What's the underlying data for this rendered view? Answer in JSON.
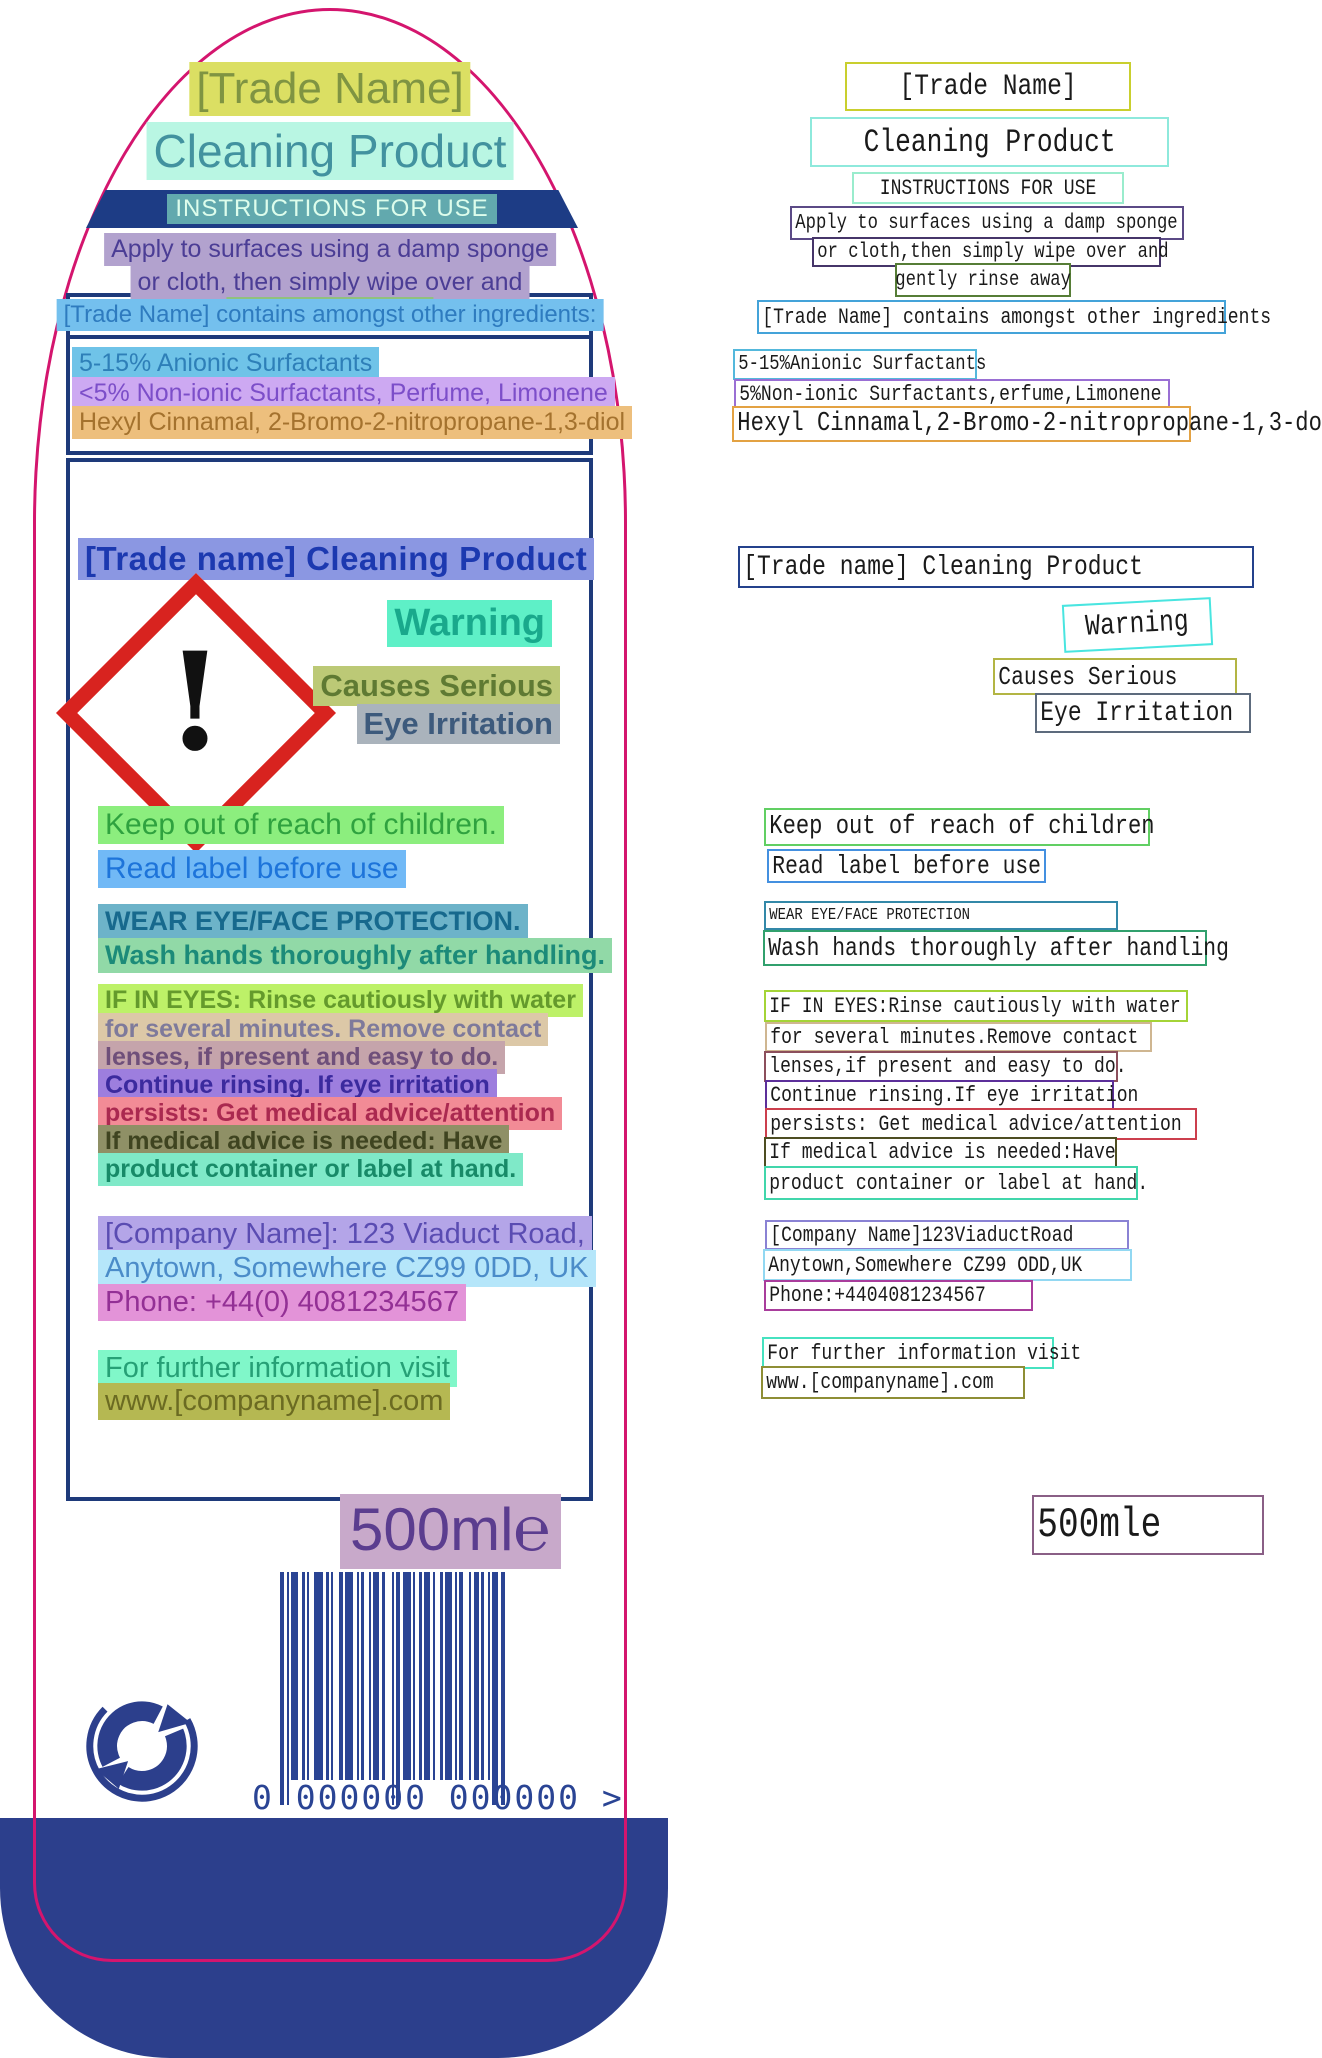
{
  "colors": {
    "outline_pink": "#d4156e",
    "navy": "#1e3a7a",
    "base_blue": "#2c3f8c",
    "ghs_red": "#d8231f"
  },
  "label": {
    "title": "[Trade Name]",
    "title_color": "#7f9442",
    "title_hl": "#dbdf63",
    "subtitle": "Cleaning Product",
    "subtitle_color": "#42929f",
    "subtitle_hl": "#b9f6e3",
    "banner": {
      "text": "INSTRUCTIONS FOR USE",
      "color": "#ddfdec",
      "hl": "#62a9ae"
    },
    "usage": [
      {
        "text": "Apply to surfaces using a damp sponge",
        "color": "#4b3d95",
        "hl": "#b2a2ce"
      },
      {
        "text": "or cloth, then simply wipe over and",
        "color": "#4b3d95",
        "hl": "#b2a2ce"
      },
      {
        "text": "gently rinse away",
        "color": "#40753c",
        "hl": "#90c17e"
      }
    ],
    "ingredients_header": {
      "text": "[Trade Name] contains amongst other ingredients:",
      "color": "#2e7bbf",
      "hl": "#74c0ee"
    },
    "ingredients": [
      {
        "text": "5-15% Anionic Surfactants",
        "color": "#2e7fb8",
        "hl": "#6fc3e8"
      },
      {
        "text": "<5% Non-ionic Surfactants, Perfume, Limonene",
        "color": "#7c4ec9",
        "hl": "#cda9f2"
      },
      {
        "text": "Hexyl Cinnamal, 2-Bromo-2-nitropropane-1,3-diol",
        "color": "#a4722e",
        "hl": "#edbf7d"
      }
    ],
    "product_line": {
      "text": "[Trade name] Cleaning Product",
      "color": "#1c39b0",
      "hl": "#8b97e2"
    },
    "ghs_exclamation": "!",
    "signal_word": {
      "text": "Warning",
      "color": "#19a98c",
      "hl": "#5ef0c7"
    },
    "hazard_lines": [
      {
        "text": "Causes Serious",
        "color": "#5f7a33",
        "hl": "#bcc976"
      },
      {
        "text": "Eye Irritation",
        "color": "#3d5a7c",
        "hl": "#aab3bc"
      }
    ],
    "statements": [
      {
        "id": "s1",
        "text": "Keep out of reach of children.",
        "color": "#2fa23f",
        "hl": "#8cee7e"
      },
      {
        "id": "s2",
        "text": "Read label before use",
        "color": "#1d74da",
        "hl": "#71b9f6"
      },
      {
        "id": "s3",
        "text": "WEAR EYE/FACE PROTECTION.",
        "color": "#17698d",
        "hl": "#6db3c9"
      },
      {
        "id": "s4",
        "text": "Wash hands thoroughly after handling.",
        "color": "#1c8b79",
        "hl": "#91d9a7"
      },
      {
        "id": "s5",
        "text": "IF IN EYES: Rinse cautiously with water",
        "color": "#649a2c",
        "hl": "#bdf168"
      },
      {
        "id": "s6",
        "text": "for several minutes. Remove contact",
        "color": "#7e7a9b",
        "hl": "#dcc8a7"
      },
      {
        "id": "s7",
        "text": "lenses, if present and easy to do.",
        "color": "#6f4f7a",
        "hl": "#c5a4ab"
      },
      {
        "id": "s8",
        "text": "Continue rinsing. If eye irritation",
        "color": "#3b2a9e",
        "hl": "#9d7ede"
      },
      {
        "id": "s9",
        "text": "persists: Get medical advice/attention",
        "color": "#aa2950",
        "hl": "#f28b96"
      },
      {
        "id": "s10",
        "text": "If medical advice is needed: Have",
        "color": "#3f4420",
        "hl": "#8f9066"
      },
      {
        "id": "s11",
        "text": "product container or label at hand.",
        "color": "#188a68",
        "hl": "#7fe9c8"
      },
      {
        "id": "c1",
        "text": "[Company Name]: 123 Viaduct Road,",
        "color": "#5a4cb2",
        "hl": "#b4a5e8"
      },
      {
        "id": "c2",
        "text": "Anytown, Somewhere CZ99 0DD, UK",
        "color": "#4b8cc9",
        "hl": "#b5e6fa"
      },
      {
        "id": "c3",
        "text": "Phone: +44(0) 4081234567",
        "color": "#933095",
        "hl": "#e393d8"
      },
      {
        "id": "f1",
        "text": "For further information visit",
        "color": "#26a076",
        "hl": "#80f7c9"
      },
      {
        "id": "f2",
        "text": "www.[companyname].com",
        "color": "#6b6b22",
        "hl": "#b5b852"
      }
    ],
    "size_text": "500ml",
    "e_mark": "℮",
    "size_color": "#5b3d8f",
    "size_hl": "#c8a9ca",
    "barcode_digits": "0 000000 000000 >"
  },
  "ocr_panel": {
    "rows": [
      {
        "id": "r1",
        "text": "[Trade Name]",
        "border": "#c9cf2e"
      },
      {
        "id": "r2",
        "text": "Cleaning Product",
        "border": "#8ee9dc"
      },
      {
        "id": "r3",
        "text": "INSTRUCTIONS FOR USE",
        "border": "#9aeccd"
      },
      {
        "id": "r4",
        "text": "Apply to surfaces using a damp sponge",
        "border": "#5b4a86"
      },
      {
        "id": "r5",
        "text": "or cloth,then simply wipe over and",
        "border": "#463569"
      },
      {
        "id": "r6",
        "text": "gently rinse away",
        "border": "#567d36"
      },
      {
        "id": "r7",
        "text": "[Trade Name] contains amongst other ingredients",
        "border": "#44a3d9"
      },
      {
        "id": "r8",
        "text": "5-15%Anionic Surfactants",
        "border": "#54b8dc"
      },
      {
        "id": "r9",
        "text": "5%Non-ionic Surfactants,erfume,Limonene",
        "border": "#9a6fd4"
      },
      {
        "id": "r10",
        "text": "Hexyl Cinnamal,2-Bromo-2-nitropropane-1,3-do",
        "border": "#e3a243"
      },
      {
        "id": "r11",
        "text": "[Trade name] Cleaning Product",
        "border": "#24418c"
      },
      {
        "id": "r12",
        "text": "Warning",
        "border": "#49e5e0"
      },
      {
        "id": "r13",
        "text": "Causes Serious",
        "border": "#b3b544"
      },
      {
        "id": "r14",
        "text": "Eye Irritation",
        "border": "#5d6b7d"
      },
      {
        "id": "r15",
        "text": "Keep out of reach of children",
        "border": "#61cf63"
      },
      {
        "id": "r16",
        "text": "Read label before use",
        "border": "#4490e0"
      },
      {
        "id": "r17",
        "text": "WEAR EYE/FACE PROTECTION",
        "border": "#3388a8"
      },
      {
        "id": "r18",
        "text": "Wash hands thoroughly after handling",
        "border": "#31a06d"
      },
      {
        "id": "r19",
        "text": "IF IN EYES:Rinse cautiously with water",
        "border": "#a4d437"
      },
      {
        "id": "r20",
        "text": "for several minutes.Remove contact",
        "border": "#cfb691"
      },
      {
        "id": "r21",
        "text": "lenses,if present and easy to do.",
        "border": "#8c4f5c"
      },
      {
        "id": "r22",
        "text": "Continue rinsing.If eye irritation",
        "border": "#5c2f9a"
      },
      {
        "id": "r23",
        "text": "persists: Get medical advice/attention",
        "border": "#cc3f4d"
      },
      {
        "id": "r24",
        "text": "If medical advice is needed:Have",
        "border": "#4e4e22"
      },
      {
        "id": "r25",
        "text": "product container or label at hand.",
        "border": "#41d6ab"
      },
      {
        "id": "r26",
        "text": "[Company Name]123ViaductRoad",
        "border": "#8a82d4"
      },
      {
        "id": "r27",
        "text": "Anytown,Somewhere CZ99 ODD,UK",
        "border": "#92d8f2"
      },
      {
        "id": "r28",
        "text": "Phone:+4404081234567",
        "border": "#a93d9c"
      },
      {
        "id": "r29",
        "text": "For further information visit",
        "border": "#46e2c0"
      },
      {
        "id": "r30",
        "text": "www.[companyname].com",
        "border": "#8e8e35"
      },
      {
        "id": "r31",
        "text": "500mle",
        "border": "#8a5f86"
      }
    ]
  }
}
